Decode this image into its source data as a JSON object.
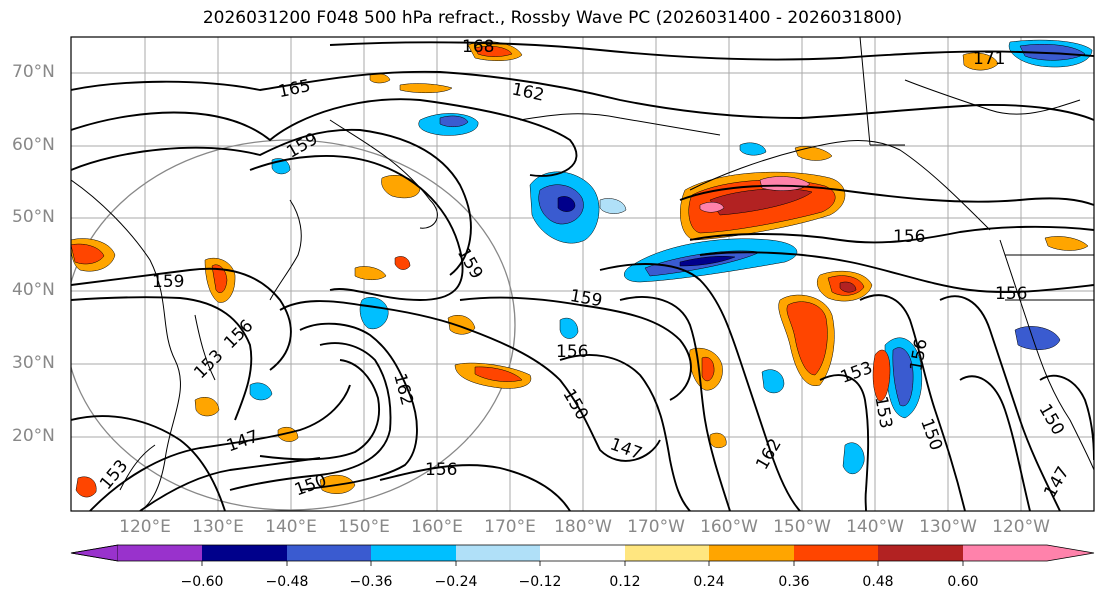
{
  "title": "2026031200 F048 500 hPa refract., Rossby Wave PC (2026031400 - 2026031800)",
  "lat_labels": [
    "70°N",
    "60°N",
    "50°N",
    "40°N",
    "30°N",
    "20°N"
  ],
  "lon_labels": [
    "120°E",
    "130°E",
    "140°E",
    "150°E",
    "160°E",
    "170°E",
    "180°W",
    "170°W",
    "160°W",
    "150°W",
    "140°W",
    "130°W",
    "120°W"
  ],
  "contour_labels": [
    "168",
    "165",
    "162",
    "159",
    "159",
    "159",
    "159",
    "156",
    "156",
    "156",
    "156",
    "156",
    "156",
    "153",
    "153",
    "153",
    "150",
    "150",
    "150",
    "150",
    "147",
    "147",
    "147",
    "162",
    "162",
    "171"
  ],
  "colorbar": {
    "ticks": [
      "−0.60",
      "−0.48",
      "−0.36",
      "−0.24",
      "−0.12",
      "0.12",
      "0.24",
      "0.36",
      "0.48",
      "0.60"
    ],
    "colors": [
      "#9932cc",
      "#00008b",
      "#3a5bd0",
      "#00bfff",
      "#b0e0f8",
      "#ffffff",
      "#ffe680",
      "#ffa500",
      "#ff4500",
      "#b22222",
      "#ff82ab"
    ]
  }
}
